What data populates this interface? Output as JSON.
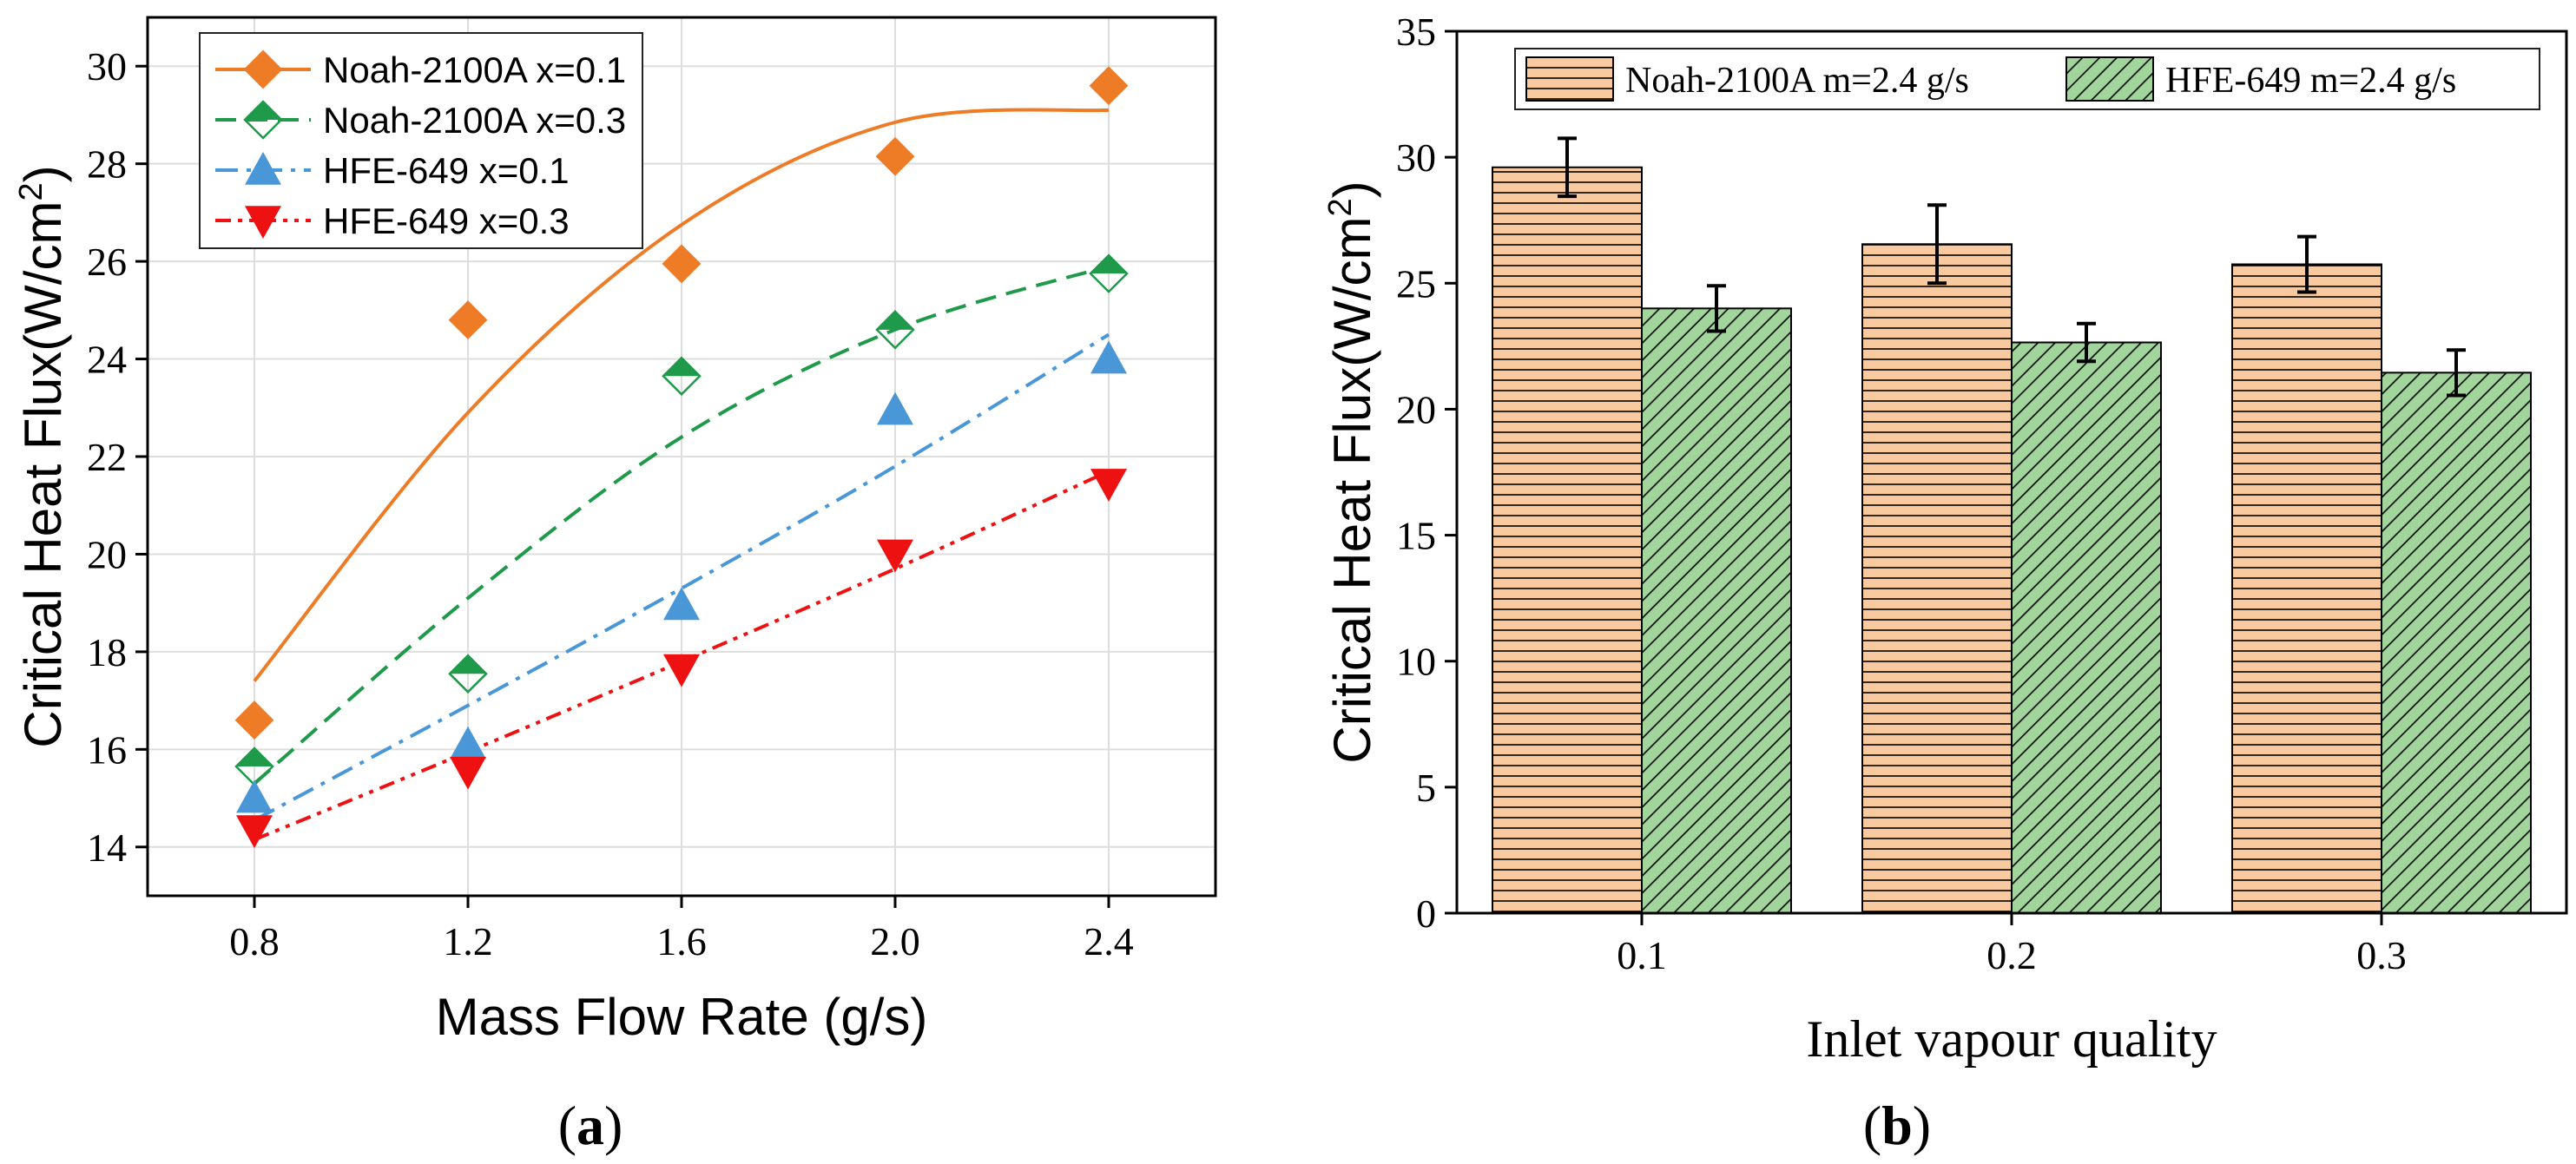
{
  "chart_data": [
    {
      "type": "scatter",
      "panel_label": "(a)",
      "panel_label_letter": "a",
      "xlabel": "Mass Flow Rate (g/s)",
      "ylabel": "Critical Heat Flux(W/cm",
      "ylabel_sup": "2",
      "ylabel_close": ")",
      "xlim": [
        0.6,
        2.6
      ],
      "ylim": [
        13,
        31
      ],
      "x": [
        0.8,
        1.2,
        1.6,
        2.0,
        2.4
      ],
      "xticks": [
        "0.8",
        "1.2",
        "1.6",
        "2.0",
        "2.4"
      ],
      "yticks": [
        "14",
        "16",
        "18",
        "20",
        "22",
        "24",
        "26",
        "28",
        "30"
      ],
      "ytick_values": [
        14,
        16,
        18,
        20,
        22,
        24,
        26,
        28,
        30
      ],
      "grid": true,
      "legend_position": "top-left",
      "series": [
        {
          "name": "Noah-2100A x=0.1",
          "values": [
            16.6,
            24.8,
            25.95,
            28.15,
            29.6
          ],
          "fit": [
            17.4,
            22.9,
            26.75,
            28.85,
            29.1
          ],
          "color": "#ee7c26",
          "marker": "diamond-filled",
          "dash": ""
        },
        {
          "name": "Noah-2100A x=0.3",
          "values": [
            15.65,
            17.55,
            23.65,
            24.6,
            25.75
          ],
          "fit": [
            15.3,
            19.1,
            22.4,
            24.6,
            25.9
          ],
          "color": "#1e9a4a",
          "marker": "diamond-half",
          "dash": "24,12"
        },
        {
          "name": "HFE-649 x=0.1",
          "values": [
            15.0,
            16.1,
            18.95,
            22.95,
            24.0
          ],
          "fit": [
            14.55,
            16.9,
            19.3,
            21.8,
            24.5
          ],
          "color": "#4a97d8",
          "marker": "triangle-up",
          "dash": "26,10,5,10"
        },
        {
          "name": "HFE-649 x=0.3",
          "values": [
            14.35,
            15.55,
            17.65,
            20.0,
            21.45
          ],
          "fit": [
            14.15,
            15.95,
            17.8,
            19.7,
            21.7
          ],
          "color": "#ee1111",
          "marker": "triangle-down",
          "dash": "18,8,5,8,5,8"
        }
      ]
    },
    {
      "type": "bar",
      "panel_label": "(b)",
      "panel_label_letter": "b",
      "xlabel": "Inlet vapour quality",
      "ylabel": "Critical Heat Flux(W/cm",
      "ylabel_sup": "2",
      "ylabel_close": ")",
      "categories": [
        "0.1",
        "0.2",
        "0.3"
      ],
      "ylim": [
        0,
        35
      ],
      "yticks": [
        "0",
        "5",
        "10",
        "15",
        "20",
        "25",
        "30",
        "35"
      ],
      "ytick_values": [
        0,
        5,
        10,
        15,
        20,
        25,
        30,
        35
      ],
      "grid": false,
      "legend_position": "top",
      "series": [
        {
          "name": "Noah-2100A m=2.4 g/s",
          "values": [
            29.6,
            26.55,
            25.75
          ],
          "errors": [
            1.15,
            1.55,
            1.1
          ],
          "color": "#f9c9a0",
          "hatch": "horizontal"
        },
        {
          "name": "HFE-649 m=2.4 g/s",
          "values": [
            24.0,
            22.65,
            21.45
          ],
          "errors": [
            0.9,
            0.75,
            0.9
          ],
          "color": "#a2d59c",
          "hatch": "diagonal"
        }
      ]
    }
  ]
}
